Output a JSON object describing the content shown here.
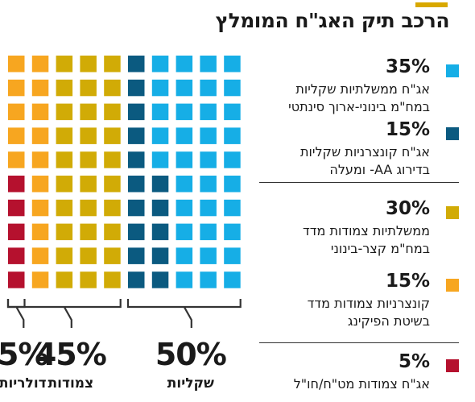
{
  "title": "הרכב תיק האג\"ח המומלץ",
  "colors": {
    "light_blue": "#16aee6",
    "dark_blue": "#0b5a80",
    "mustard": "#d1ab06",
    "orange": "#f7a620",
    "red": "#b5112e",
    "bracket": "#333333"
  },
  "chart_data": {
    "type": "waffle",
    "title": "הרכב תיק האג\"ח המומלץ",
    "grid": {
      "columns": 10,
      "rows": 10,
      "total": 100
    },
    "series": [
      {
        "name": "אג\"ח ממשלתיות שקליות במח\"מ בינוני-ארוך סינתטי",
        "value": 35,
        "label": "35%",
        "line1": "אג\"ח ממשלתיות שקליות",
        "line2": "במח\"מ בינוני-ארוך סינתטי",
        "color": "#16aee6"
      },
      {
        "name": "אג\"ח קונצרניות שקליות בדירוג AA- ומעלה",
        "value": 15,
        "label": "15%",
        "line1": "אג\"ח קונצרניות שקליות",
        "line2": "בדירוג AA- ומעלה",
        "color": "#0b5a80"
      },
      {
        "name": "ממשלתיות צמודות מדד במח\"מ קצר-בינוני",
        "value": 30,
        "label": "30%",
        "line1": "ממשלתיות צמודות מדד",
        "line2": "במח\"מ קצר-בינוני",
        "color": "#d1ab06"
      },
      {
        "name": "קונצרניות צמודות מדד בשיטת הפיקינג",
        "value": 15,
        "label": "15%",
        "line1": "קונצרניות צמודות מדד",
        "line2": "בשיטת הפיקינג",
        "color": "#f7a620"
      },
      {
        "name": "אג\"ח צמודות מט\"ח/חו\"ל",
        "value": 5,
        "label": "5%",
        "line1": "אג\"ח צמודות מט\"ח/חו\"ל",
        "line2": "",
        "color": "#b5112e"
      }
    ],
    "groups": [
      {
        "label": "שקליות",
        "value": "50%",
        "series": [
          0,
          1
        ]
      },
      {
        "label": "צמודות",
        "value": "45%",
        "series": [
          2,
          3
        ]
      },
      {
        "label": "דולריות",
        "value": "5%",
        "series": [
          4
        ]
      }
    ]
  }
}
